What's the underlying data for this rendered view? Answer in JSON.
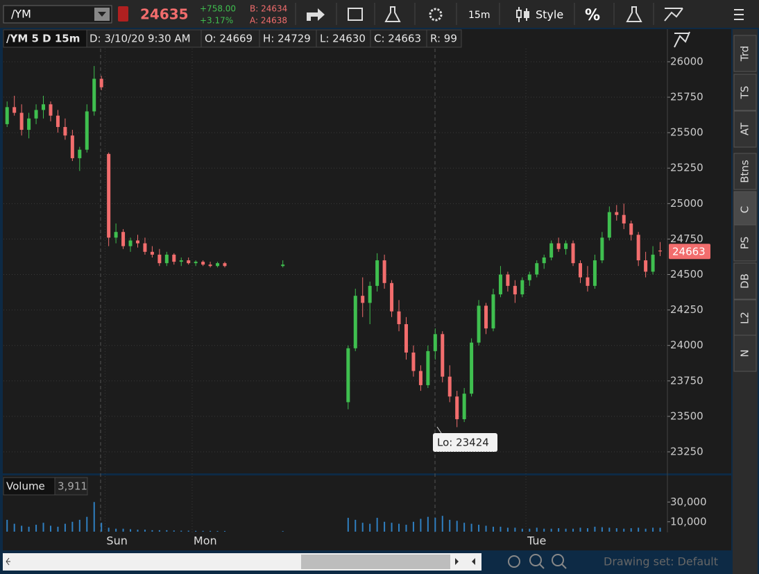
{
  "toolbar": {
    "symbol": "/YM",
    "last": "24635",
    "change": "+758.00",
    "change_pct": "+3.17%",
    "bid": "B: 24634",
    "ask": "A: 24638",
    "interval": "15m",
    "style": "Style",
    "percent": "%"
  },
  "header": {
    "title": "/YM 5 D 15m",
    "date": "D: 3/10/20 9:30 AM",
    "open": "O: 24669",
    "high": "H: 24729",
    "low": "L: 24630",
    "close": "C: 24663",
    "range": "R: 99"
  },
  "sidebar": {
    "tabs": [
      "Trd",
      "TS",
      "AT",
      "Btns",
      "C",
      "PS",
      "DB",
      "L2",
      "N"
    ]
  },
  "footer": {
    "drawing_set": "Drawing set: Default"
  },
  "chart_data": {
    "type": "candlestick",
    "up_color": "#3fbf4f",
    "down_color": "#f26d6d",
    "grid": true,
    "ylim": [
      23108,
      26220
    ],
    "yticks": [
      23250,
      23500,
      23750,
      24000,
      24250,
      24500,
      24750,
      25000,
      25250,
      25500,
      25750,
      26000
    ],
    "xlim": [
      -0.5,
      91
    ],
    "xticks": [
      {
        "value": 13.5,
        "label": "Sun"
      },
      {
        "value": 25.5,
        "label": "Mon"
      },
      {
        "value": 71.5,
        "label": "Tue"
      }
    ],
    "annotation": "Lo: 23424",
    "price_tag": 24663,
    "candles": [
      [
        0,
        25560,
        25720,
        25540,
        25680
      ],
      [
        1,
        25680,
        25760,
        25620,
        25640
      ],
      [
        2,
        25640,
        25700,
        25480,
        25520
      ],
      [
        3,
        25520,
        25640,
        25460,
        25600
      ],
      [
        4,
        25600,
        25700,
        25560,
        25660
      ],
      [
        5,
        25660,
        25760,
        25600,
        25700
      ],
      [
        6,
        25700,
        25720,
        25580,
        25620
      ],
      [
        7,
        25620,
        25660,
        25500,
        25540
      ],
      [
        8,
        25540,
        25600,
        25450,
        25480
      ],
      [
        9,
        25480,
        25520,
        25300,
        25320
      ],
      [
        10,
        25320,
        25400,
        25230,
        25380
      ],
      [
        11,
        25380,
        25700,
        25360,
        25650
      ],
      [
        12,
        25650,
        25970,
        25620,
        25880
      ],
      [
        13,
        25880,
        25900,
        25800,
        25820
      ],
      [
        14,
        25350,
        25360,
        24700,
        24760
      ],
      [
        15,
        24760,
        24860,
        24720,
        24800
      ],
      [
        16,
        24800,
        24820,
        24680,
        24700
      ],
      [
        17,
        24700,
        24760,
        24660,
        24740
      ],
      [
        18,
        24740,
        24780,
        24690,
        24720
      ],
      [
        19,
        24720,
        24760,
        24640,
        24660
      ],
      [
        20,
        24660,
        24700,
        24620,
        24640
      ],
      [
        21,
        24640,
        24680,
        24560,
        24580
      ],
      [
        22,
        24580,
        24660,
        24560,
        24640
      ],
      [
        23,
        24640,
        24650,
        24570,
        24590
      ],
      [
        24,
        24590,
        24620,
        24560,
        24600
      ],
      [
        25,
        24600,
        24620,
        24570,
        24580
      ],
      [
        26,
        24580,
        24600,
        24560,
        24590
      ],
      [
        27,
        24590,
        24600,
        24560,
        24570
      ],
      [
        28,
        24570,
        24590,
        24550,
        24560
      ],
      [
        29,
        24560,
        24590,
        24550,
        24580
      ],
      [
        30,
        24580,
        24590,
        24550,
        24560
      ],
      [
        38,
        24560,
        24600,
        24550,
        24570
      ],
      [
        47,
        23600,
        24000,
        23550,
        23980
      ],
      [
        48,
        23980,
        24400,
        23960,
        24350
      ],
      [
        49,
        24350,
        24480,
        24200,
        24300
      ],
      [
        50,
        24300,
        24450,
        24150,
        24420
      ],
      [
        51,
        24420,
        24650,
        24380,
        24600
      ],
      [
        52,
        24600,
        24640,
        24400,
        24440
      ],
      [
        53,
        24440,
        24460,
        24200,
        24240
      ],
      [
        54,
        24240,
        24320,
        24100,
        24150
      ],
      [
        55,
        24150,
        24200,
        23900,
        23950
      ],
      [
        56,
        23950,
        24000,
        23780,
        23820
      ],
      [
        57,
        23820,
        23860,
        23680,
        23720
      ],
      [
        58,
        23720,
        24000,
        23700,
        23960
      ],
      [
        59,
        23960,
        24120,
        23900,
        24080
      ],
      [
        60,
        24080,
        24100,
        23740,
        23780
      ],
      [
        61,
        23780,
        23860,
        23600,
        23640
      ],
      [
        62,
        23640,
        23680,
        23424,
        23480
      ],
      [
        63,
        23480,
        23700,
        23460,
        23660
      ],
      [
        64,
        23660,
        24050,
        23640,
        24020
      ],
      [
        65,
        24020,
        24320,
        24000,
        24280
      ],
      [
        66,
        24280,
        24300,
        24080,
        24120
      ],
      [
        67,
        24120,
        24400,
        24100,
        24360
      ],
      [
        68,
        24360,
        24560,
        24340,
        24500
      ],
      [
        69,
        24500,
        24520,
        24380,
        24420
      ],
      [
        70,
        24420,
        24460,
        24300,
        24360
      ],
      [
        71,
        24360,
        24480,
        24340,
        24460
      ],
      [
        72,
        24460,
        24520,
        24420,
        24500
      ],
      [
        73,
        24500,
        24600,
        24480,
        24580
      ],
      [
        74,
        24580,
        24640,
        24540,
        24620
      ],
      [
        75,
        24620,
        24740,
        24600,
        24720
      ],
      [
        76,
        24720,
        24760,
        24660,
        24680
      ],
      [
        77,
        24680,
        24740,
        24640,
        24720
      ],
      [
        78,
        24720,
        24740,
        24560,
        24580
      ],
      [
        79,
        24580,
        24600,
        24440,
        24480
      ],
      [
        80,
        24480,
        24560,
        24380,
        24420
      ],
      [
        81,
        24420,
        24640,
        24400,
        24600
      ],
      [
        82,
        24600,
        24800,
        24580,
        24760
      ],
      [
        83,
        24760,
        24980,
        24740,
        24940
      ],
      [
        84,
        24940,
        24990,
        24880,
        24920
      ],
      [
        85,
        24920,
        25000,
        24820,
        24860
      ],
      [
        86,
        24860,
        24880,
        24740,
        24780
      ],
      [
        87,
        24780,
        24800,
        24560,
        24600
      ],
      [
        88,
        24600,
        24660,
        24480,
        24520
      ],
      [
        89,
        24520,
        24700,
        24500,
        24640
      ],
      [
        90,
        24669,
        24729,
        24630,
        24663
      ]
    ],
    "volume": {
      "title": "Volume",
      "current": "3,911",
      "color": "#2f7fc1",
      "ylim": [
        0,
        54800
      ],
      "yticks": [
        {
          "value": 10000,
          "label": "10,000"
        },
        {
          "value": 30000,
          "label": "30,000"
        }
      ],
      "values": [
        12000,
        8000,
        6000,
        5000,
        7000,
        9000,
        6000,
        5000,
        8000,
        10000,
        12000,
        15000,
        30000,
        9000,
        4000,
        3000,
        3000,
        2500,
        2000,
        2000,
        1500,
        1500,
        1500,
        1200,
        1000,
        1000,
        800,
        800,
        800,
        700,
        700,
        600,
        14000,
        12000,
        9000,
        8000,
        14000,
        10000,
        9000,
        8000,
        7000,
        10000,
        13000,
        15000,
        14000,
        16000,
        12000,
        11000,
        9000,
        8000,
        7000,
        6000,
        5000,
        5000,
        4000,
        4000,
        3000,
        3000,
        4000,
        3000,
        3000,
        3500,
        3000,
        3000,
        4000,
        3500,
        5000,
        4500,
        4000,
        3500,
        3000,
        3500,
        4000,
        3000,
        4000,
        3911
      ]
    }
  }
}
